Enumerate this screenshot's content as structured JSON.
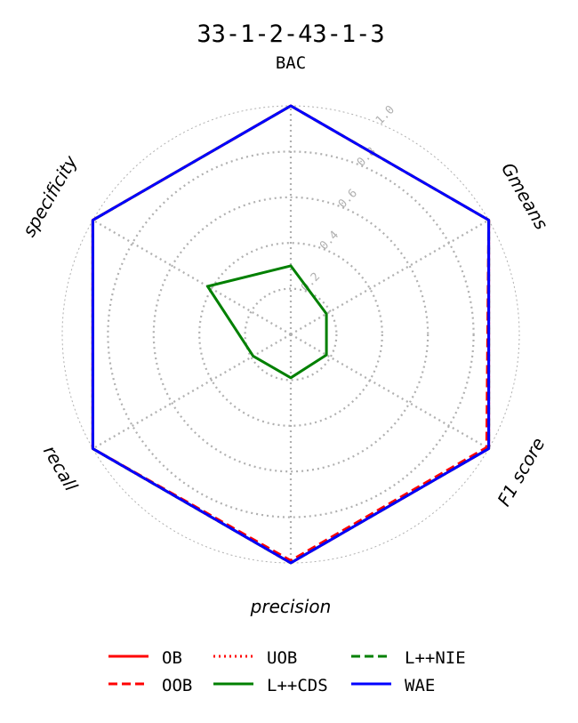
{
  "chart_data": {
    "type": "radar",
    "title": "33-1-2-43-1-3",
    "axes": [
      "BAC",
      "Gmeans",
      "F1 score",
      "precision",
      "recall",
      "specificity"
    ],
    "radial_ticks": [
      "0.2",
      "0.4",
      "0.6",
      "0.8",
      "1.0"
    ],
    "rlim": [
      0,
      1
    ],
    "grid": true,
    "legend_position": "bottom",
    "legend_columns": 3,
    "series": [
      {
        "name": "OB",
        "color": "#ff0000",
        "style": "solid",
        "values": [
          1.0,
          1.0,
          1.0,
          1.0,
          1.0,
          1.0
        ]
      },
      {
        "name": "OOB",
        "color": "#ff0000",
        "style": "dashed",
        "values": [
          1.0,
          1.0,
          0.99,
          0.99,
          1.0,
          1.0
        ]
      },
      {
        "name": "UOB",
        "color": "#ff0000",
        "style": "dotted",
        "values": [
          1.0,
          1.0,
          1.0,
          1.0,
          1.0,
          1.0
        ]
      },
      {
        "name": "L++CDS",
        "color": "#008000",
        "style": "solid",
        "values": [
          0.3,
          0.18,
          0.18,
          0.19,
          0.19,
          0.42
        ]
      },
      {
        "name": "L++NIE",
        "color": "#008000",
        "style": "dashed",
        "values": [
          1.0,
          1.0,
          1.0,
          1.0,
          1.0,
          1.0
        ]
      },
      {
        "name": "WAE",
        "color": "#0000ff",
        "style": "solid",
        "values": [
          1.0,
          1.0,
          1.0,
          1.0,
          1.0,
          1.0
        ]
      }
    ]
  }
}
